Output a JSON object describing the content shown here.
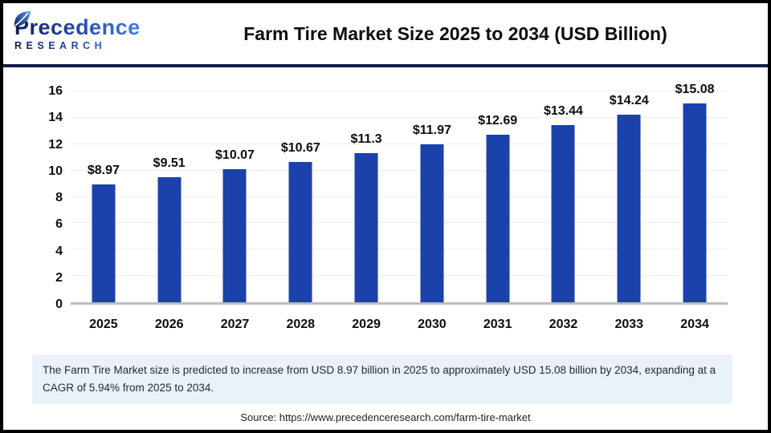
{
  "header": {
    "logo_line1": "Precedence",
    "logo_line2": "RESEARCH",
    "title": "Farm Tire Market Size 2025 to 2034 (USD Billion)"
  },
  "chart_data": {
    "type": "bar",
    "title": "Farm Tire Market Size 2025 to 2034 (USD Billion)",
    "categories": [
      "2025",
      "2026",
      "2027",
      "2028",
      "2029",
      "2030",
      "2031",
      "2032",
      "2033",
      "2034"
    ],
    "values": [
      8.97,
      9.51,
      10.07,
      10.67,
      11.3,
      11.97,
      12.69,
      13.44,
      14.24,
      15.08
    ],
    "value_labels": [
      "$8.97",
      "$9.51",
      "$10.07",
      "$10.67",
      "$11.3",
      "$11.97",
      "$12.69",
      "$13.44",
      "$14.24",
      "$15.08"
    ],
    "unit": "USD Billion",
    "xlabel": "",
    "ylabel": "",
    "ylim": [
      0,
      16
    ],
    "yticks": [
      0,
      2,
      4,
      6,
      8,
      10,
      12,
      14,
      16
    ],
    "grid": true,
    "legend": "none",
    "bar_color": "#1b41ab"
  },
  "summary": {
    "text": "The Farm Tire Market size is predicted to increase from USD 8.97 billion in 2025 to approximately USD 15.08 billion by 2034, expanding at a CAGR of 5.94% from 2025 to 2034."
  },
  "source": {
    "text": "Source: https://www.precedenceresearch.com/farm-tire-market"
  },
  "colors": {
    "bar": "#1b41ab",
    "divider": "#161b4e",
    "summary_bg": "#eaf1f9",
    "gridline": "#ededed",
    "baseline": "#bdbdbd"
  }
}
